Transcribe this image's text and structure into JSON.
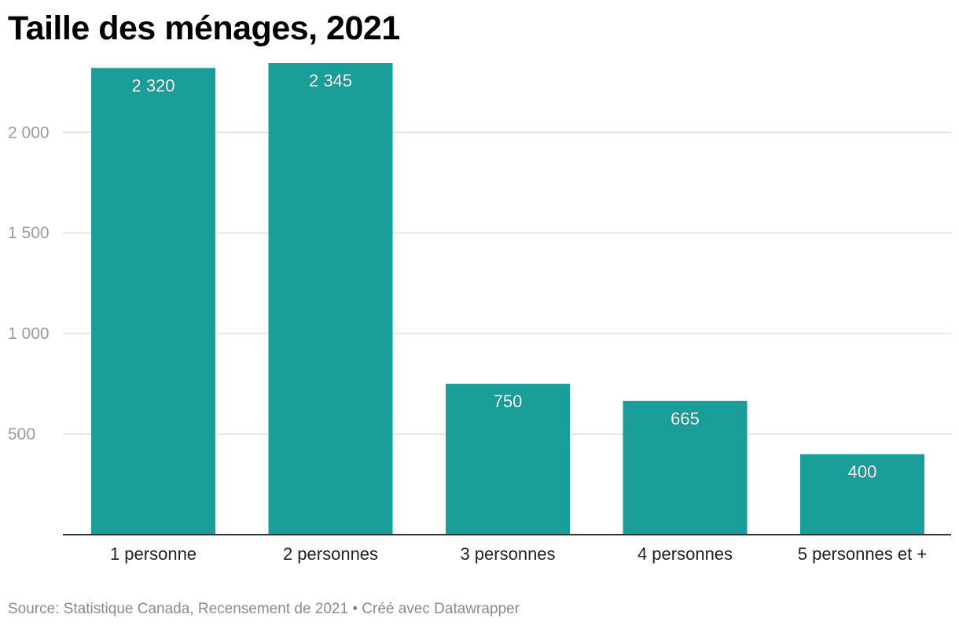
{
  "title": "Taille des ménages, 2021",
  "footer": {
    "source": "Source: Statistique Canada, Recensement de 2021",
    "separator": " • ",
    "credit": "Créé avec Datawrapper"
  },
  "colors": {
    "bar": "#1a9e99",
    "grid": "#e0e0e0",
    "axis": "#333333"
  },
  "chart_data": {
    "type": "bar",
    "title": "Taille des ménages, 2021",
    "categories": [
      "1 personne",
      "2 personnes",
      "3 personnes",
      "4 personnes",
      "5 personnes et +"
    ],
    "values": [
      2320,
      2345,
      750,
      665,
      400
    ],
    "value_labels": [
      "2 320",
      "2 345",
      "750",
      "665",
      "400"
    ],
    "yticks": [
      500,
      1000,
      1500,
      2000
    ],
    "ytick_labels": [
      "500",
      "1 000",
      "1 500",
      "2 000"
    ],
    "ylim": [
      0,
      2345
    ],
    "xlabel": "",
    "ylabel": "",
    "grid": true,
    "legend": "none"
  }
}
